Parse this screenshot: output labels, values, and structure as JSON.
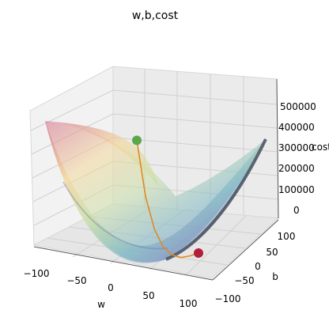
{
  "chart_data": {
    "type": "surface3d",
    "title": "w,b,cost",
    "xlabel": "w",
    "ylabel": "b",
    "zlabel": "cost",
    "x_ticks": [
      "−100",
      "−50",
      "0",
      "50",
      "100"
    ],
    "y_ticks": [
      "−100",
      "−50",
      "0",
      "50",
      "100"
    ],
    "z_ticks": [
      "0",
      "100000",
      "200000",
      "300000",
      "400000",
      "500000"
    ],
    "xlim": [
      -100,
      100
    ],
    "ylim": [
      -100,
      100
    ],
    "zlim": [
      0,
      560000
    ],
    "grid": true,
    "colormap": "Spectral",
    "surface_opacity": 0.5,
    "path_series": {
      "color": "#e08a1e",
      "points": [
        {
          "w": -100,
          "b": 50,
          "cost": 420000
        },
        {
          "w": -70,
          "b": 40,
          "cost": 200000
        },
        {
          "w": -40,
          "b": 30,
          "cost": 80000
        },
        {
          "w": -10,
          "b": 20,
          "cost": 20000
        },
        {
          "w": 20,
          "b": 10,
          "cost": 2000
        },
        {
          "w": 50,
          "b": 0,
          "cost": 5000
        },
        {
          "w": 75,
          "b": -5,
          "cost": 20000
        },
        {
          "w": 100,
          "b": -10,
          "cost": 40000
        }
      ]
    },
    "start_point": {
      "w": -100,
      "b": 50,
      "cost": 420000,
      "color": "#5aa84a"
    },
    "end_point": {
      "w": 100,
      "b": -10,
      "cost": 40000,
      "color": "#b0203a"
    }
  }
}
